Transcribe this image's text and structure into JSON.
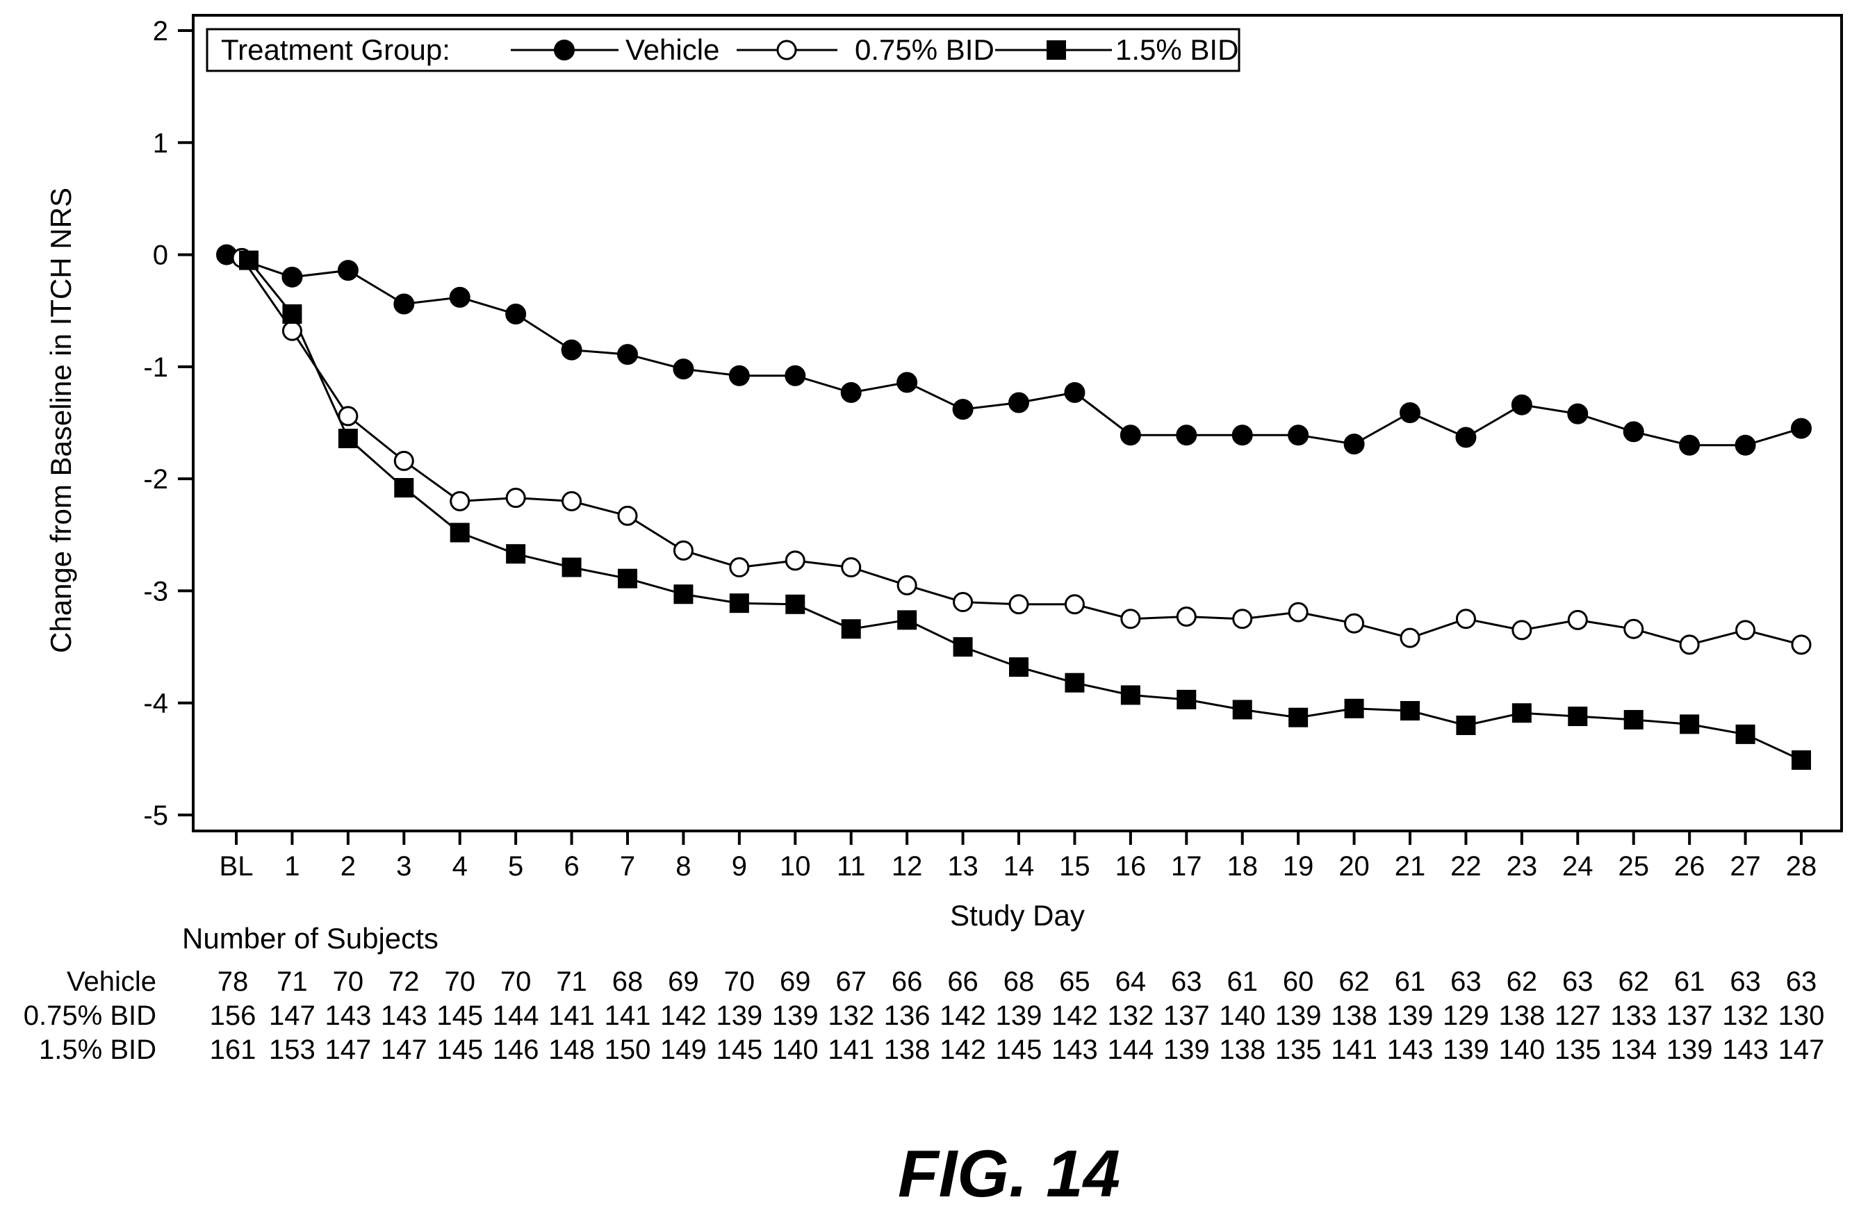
{
  "chart_data": {
    "type": "line",
    "xlabel": "Study Day",
    "ylabel": "Change from Baseline in ITCH NRS",
    "ylim": [
      -5,
      2
    ],
    "yticks": [
      2,
      1,
      0,
      -1,
      -2,
      -3,
      -4,
      -5
    ],
    "categories": [
      "BL",
      "1",
      "2",
      "3",
      "4",
      "5",
      "6",
      "7",
      "8",
      "9",
      "10",
      "11",
      "12",
      "13",
      "14",
      "15",
      "16",
      "17",
      "18",
      "19",
      "20",
      "21",
      "22",
      "23",
      "24",
      "25",
      "26",
      "27",
      "28"
    ],
    "legend": {
      "title": "Treatment Group:",
      "placement": "top-left"
    },
    "series": [
      {
        "name": "Vehicle",
        "marker": "filled-circle",
        "values": [
          0,
          -0.2,
          -0.14,
          -0.44,
          -0.38,
          -0.53,
          -0.85,
          -0.89,
          -1.02,
          -1.08,
          -1.08,
          -1.23,
          -1.14,
          -1.38,
          -1.32,
          -1.23,
          -1.61,
          -1.61,
          -1.61,
          -1.61,
          -1.69,
          -1.41,
          -1.63,
          -1.34,
          -1.42,
          -1.58,
          -1.7,
          -1.7,
          -1.55
        ]
      },
      {
        "name": "0.75% BID",
        "marker": "open-circle",
        "values": [
          -0.03,
          -0.68,
          -1.44,
          -1.84,
          -2.2,
          -2.17,
          -2.2,
          -2.33,
          -2.64,
          -2.79,
          -2.73,
          -2.79,
          -2.95,
          -3.1,
          -3.12,
          -3.12,
          -3.25,
          -3.23,
          -3.25,
          -3.19,
          -3.29,
          -3.42,
          -3.25,
          -3.35,
          -3.26,
          -3.34,
          -3.48,
          -3.35,
          -3.48
        ]
      },
      {
        "name": "1.5% BID",
        "marker": "filled-square",
        "values": [
          -0.05,
          -0.53,
          -1.64,
          -2.08,
          -2.48,
          -2.67,
          -2.79,
          -2.89,
          -3.03,
          -3.11,
          -3.12,
          -3.34,
          -3.26,
          -3.5,
          -3.68,
          -3.82,
          -3.93,
          -3.97,
          -4.06,
          -4.13,
          -4.05,
          -4.07,
          -4.2,
          -4.09,
          -4.12,
          -4.15,
          -4.19,
          -4.28,
          -4.51
        ]
      }
    ]
  },
  "subjects_table": {
    "title": "Number of Subjects",
    "rows": [
      {
        "label": "Vehicle",
        "values": [
          "78",
          "71",
          "70",
          "72",
          "70",
          "70",
          "71",
          "68",
          "69",
          "70",
          "69",
          "67",
          "66",
          "66",
          "68",
          "65",
          "64",
          "63",
          "61",
          "60",
          "62",
          "61",
          "63",
          "62",
          "63",
          "62",
          "61",
          "63",
          "63"
        ]
      },
      {
        "label": "0.75%  BID",
        "values": [
          "156",
          "147",
          "143",
          "143",
          "145",
          "144",
          "141",
          "141",
          "142",
          "139",
          "139",
          "132",
          "136",
          "142",
          "139",
          "142",
          "132",
          "137",
          "140",
          "139",
          "138",
          "139",
          "129",
          "138",
          "127",
          "133",
          "137",
          "132",
          "130"
        ]
      },
      {
        "label": "1.5% BID",
        "values": [
          "161",
          "153",
          "147",
          "147",
          "145",
          "146",
          "148",
          "150",
          "149",
          "145",
          "140",
          "141",
          "138",
          "142",
          "145",
          "143",
          "144",
          "139",
          "138",
          "135",
          "141",
          "143",
          "139",
          "140",
          "135",
          "134",
          "139",
          "143",
          "147"
        ]
      }
    ]
  },
  "figure_label": "FIG. 14"
}
